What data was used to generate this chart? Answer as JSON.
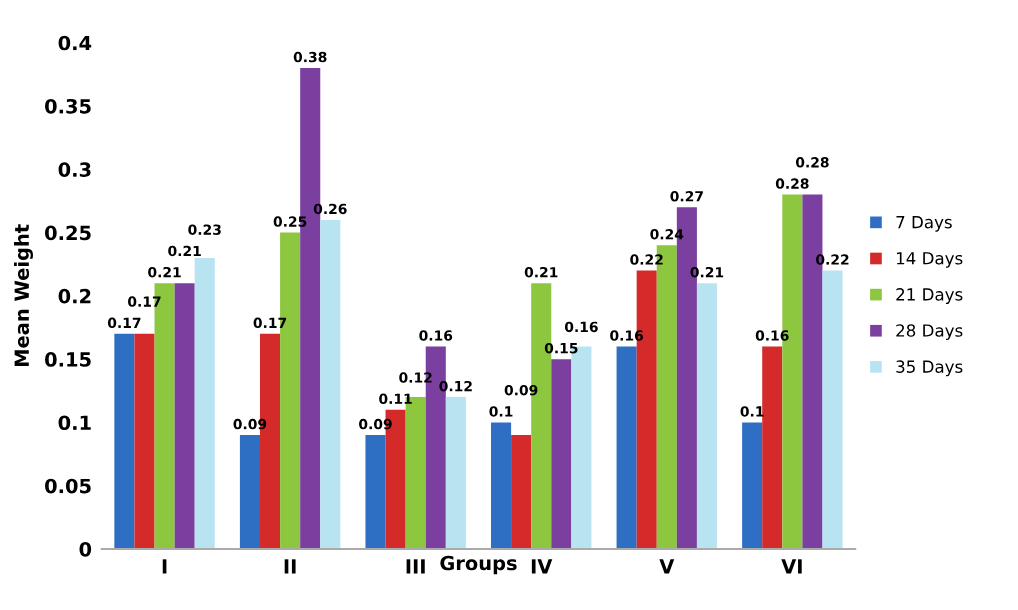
{
  "chart_data": {
    "type": "bar",
    "xlabel": "Groups",
    "ylabel": "Mean Weight",
    "categories": [
      "I",
      "II",
      "III",
      "IV",
      "V",
      "VI"
    ],
    "series": [
      {
        "name": "7 Days",
        "color": "#2e6fc4",
        "values": [
          0.17,
          0.09,
          0.09,
          0.1,
          0.16,
          0.1
        ]
      },
      {
        "name": "14 Days",
        "color": "#d42a2a",
        "values": [
          0.17,
          0.17,
          0.11,
          0.09,
          0.22,
          0.16
        ]
      },
      {
        "name": "21 Days",
        "color": "#8dc63f",
        "values": [
          0.21,
          0.25,
          0.12,
          0.21,
          0.24,
          0.28
        ]
      },
      {
        "name": "28 Days",
        "color": "#7b3fa0",
        "values": [
          0.21,
          0.38,
          0.16,
          0.15,
          0.27,
          0.28
        ]
      },
      {
        "name": "35 Days",
        "color": "#b8e4f2",
        "values": [
          0.23,
          0.26,
          0.12,
          0.16,
          0.21,
          0.22
        ]
      }
    ],
    "ylim": [
      0,
      0.4
    ],
    "yticks": [
      0,
      0.05,
      0.1,
      0.15,
      0.2,
      0.25,
      0.3,
      0.35,
      0.4
    ],
    "data_labels": true,
    "legend": "right",
    "grid": false
  }
}
